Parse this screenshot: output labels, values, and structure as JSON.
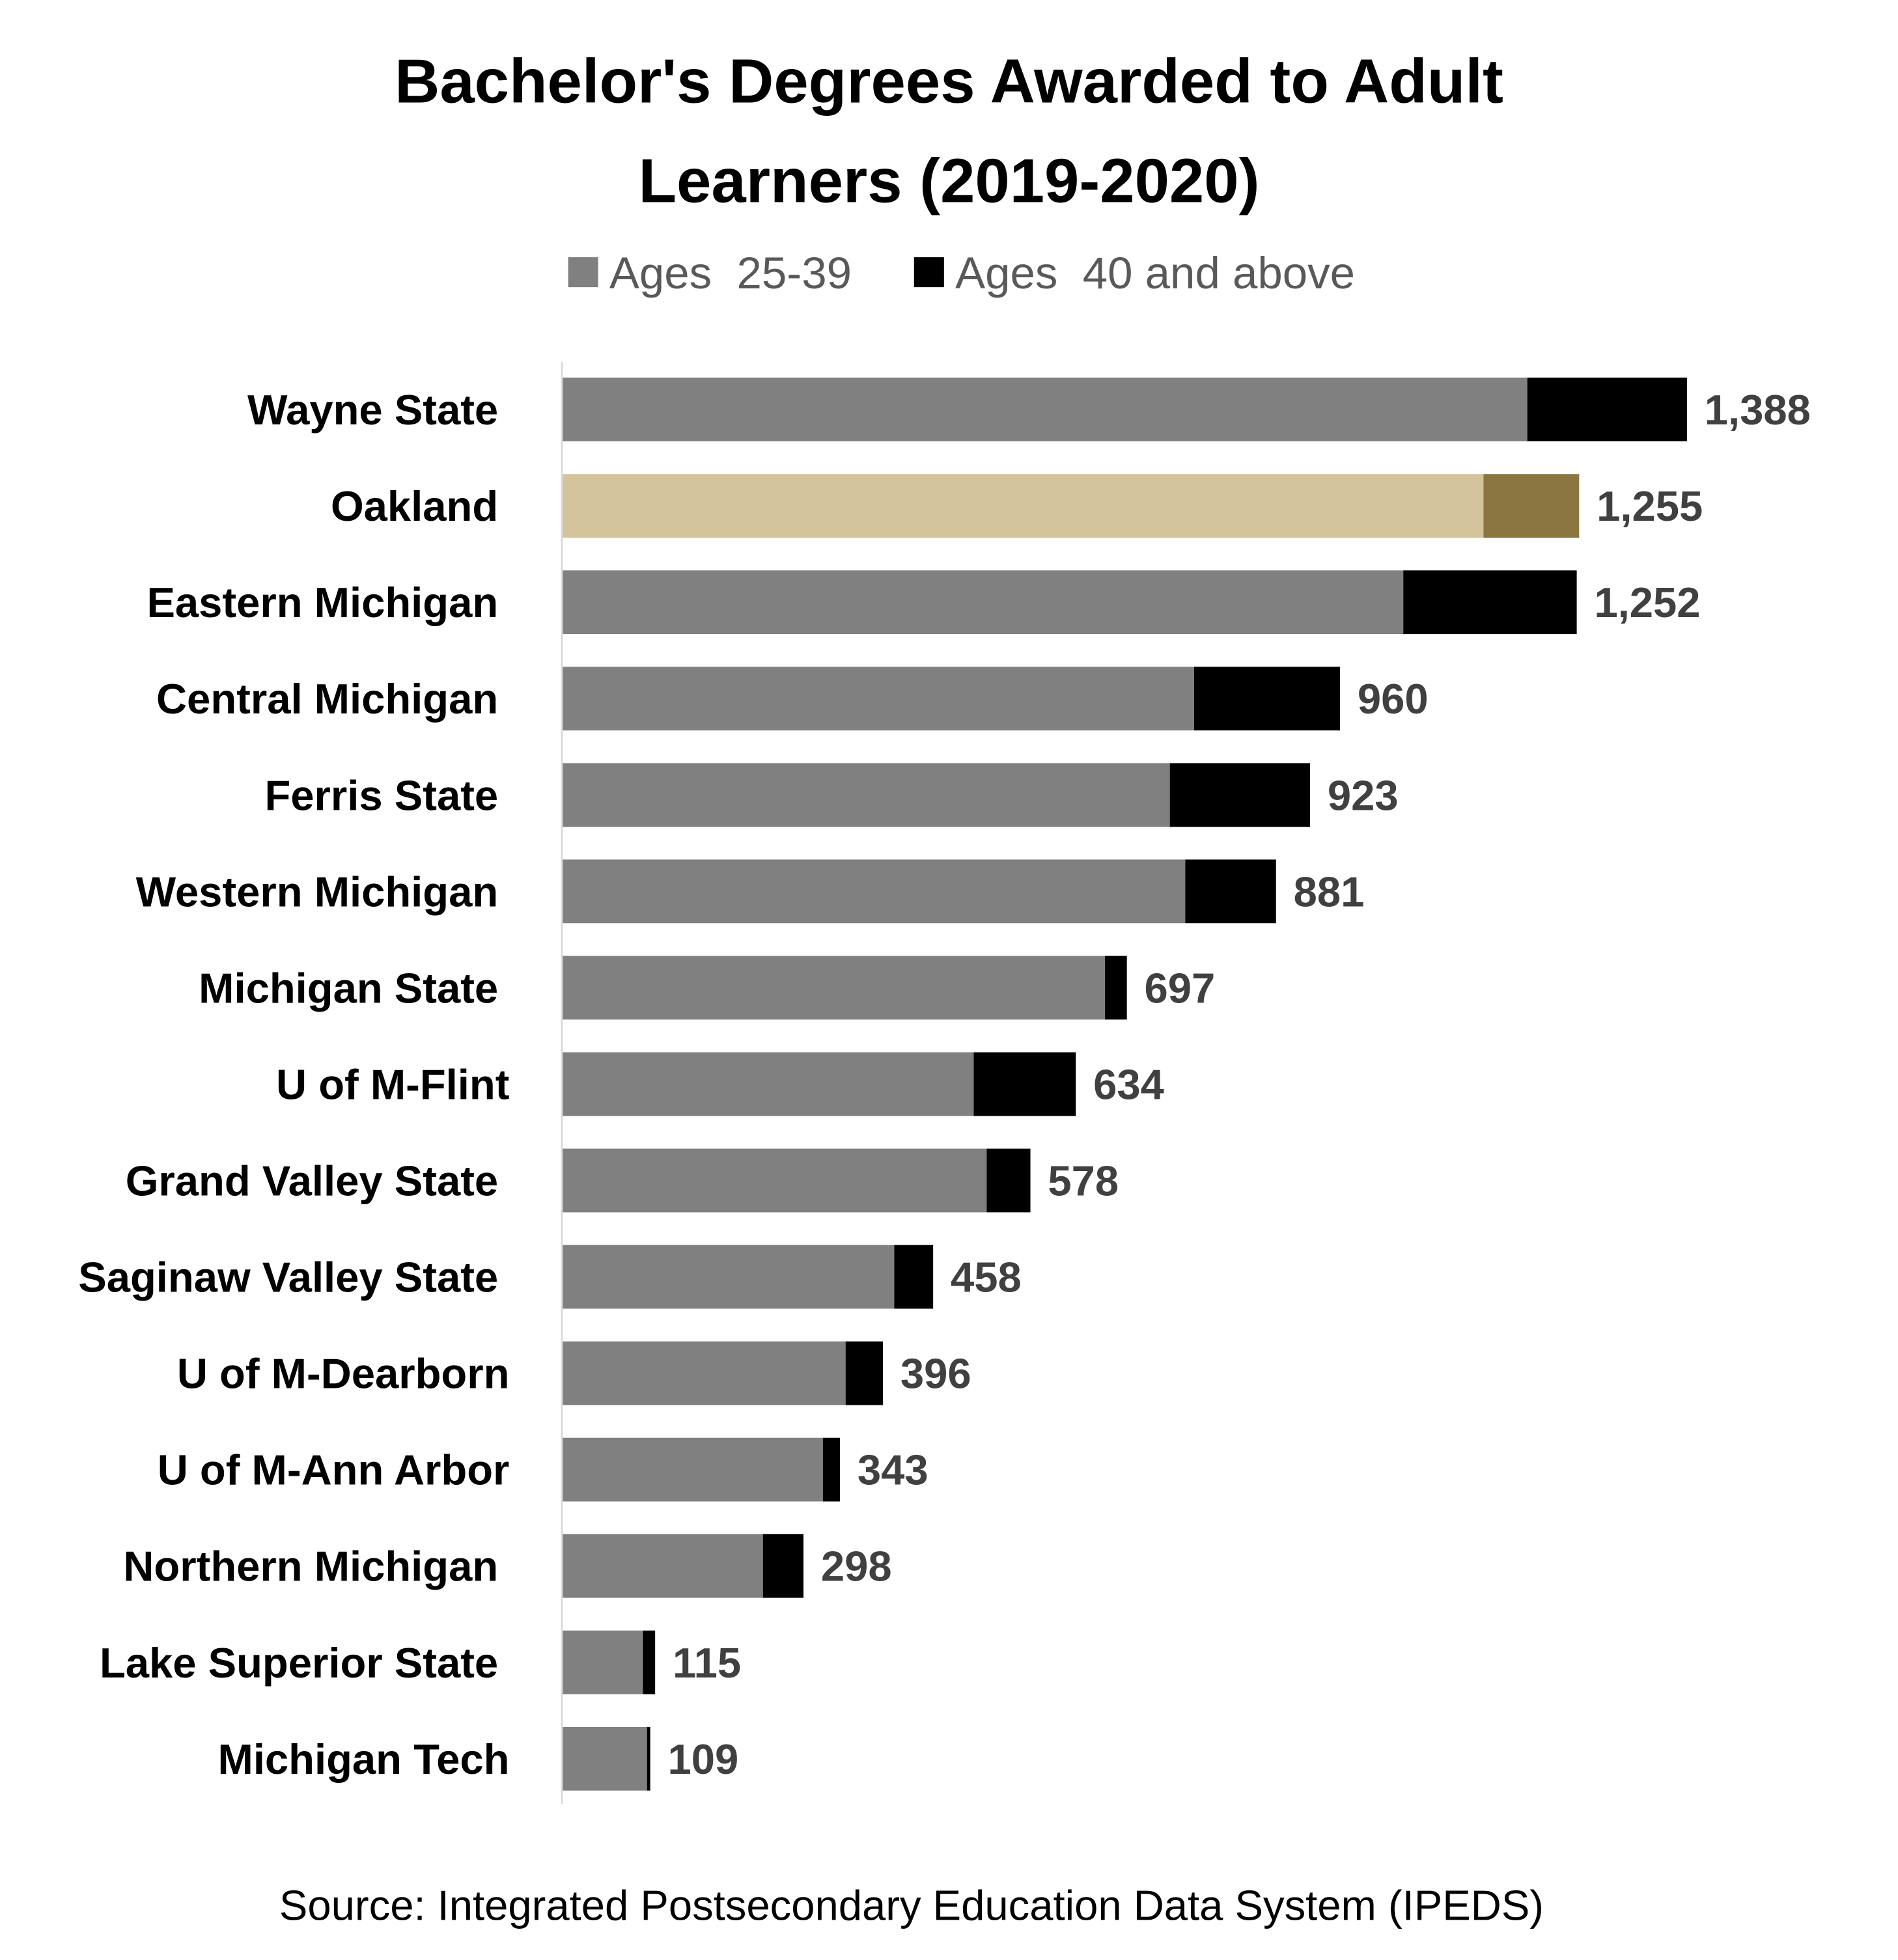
{
  "chart_data": {
    "type": "bar",
    "orientation": "horizontal",
    "stacked": true,
    "title": "Bachelor's Degrees Awarded to Adult Learners (2019-2020)",
    "title_lines": [
      "Bachelor's Degrees Awarded to Adult",
      "Learners (2019-2020)"
    ],
    "source": "Source: Integrated Postsecondary Education Data System (IPEDS)",
    "legend_placement": "top",
    "grid": false,
    "xlim": [
      0,
      1388
    ],
    "categories": [
      "Wayne State",
      "Oakland",
      "Eastern Michigan",
      "Central Michigan",
      "Ferris State",
      "Western Michigan",
      "Michigan State",
      "U of M-Flint",
      "Grand Valley State",
      "Saginaw Valley State",
      "U of M-Dearborn",
      "U of M-Ann Arbor",
      "Northern Michigan",
      "Lake Superior State",
      "Michigan Tech"
    ],
    "series": [
      {
        "name": "Ages  25-39",
        "color": "#808080",
        "values": [
          1191,
          1137,
          1038,
          780,
          750,
          769,
          670,
          508,
          524,
          410,
          350,
          322,
          248,
          100,
          105
        ]
      },
      {
        "name": "Ages  40 and above",
        "color": "#000000",
        "values": [
          197,
          118,
          214,
          180,
          173,
          112,
          27,
          126,
          54,
          48,
          46,
          21,
          50,
          15,
          4
        ]
      }
    ],
    "totals": [
      "1,388",
      "1,255",
      "1,252",
      "960",
      "923",
      "881",
      "697",
      "634",
      "578",
      "458",
      "396",
      "343",
      "298",
      "115",
      "109"
    ],
    "highlight": {
      "category": "Oakland",
      "colors": [
        "#D4C49C",
        "#8B7540"
      ]
    }
  }
}
